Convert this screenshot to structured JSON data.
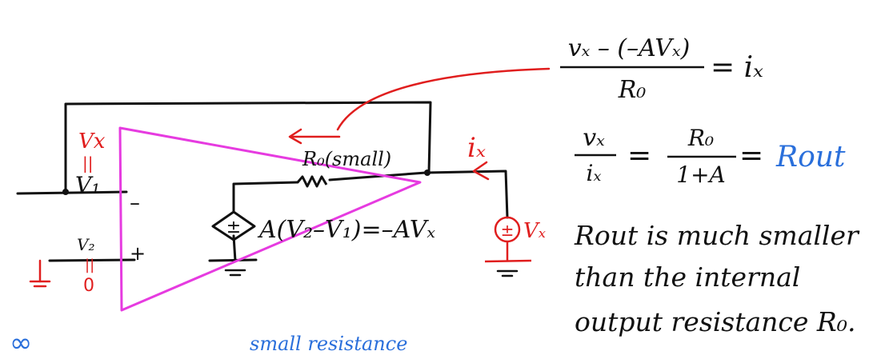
{
  "colors": {
    "ink": "#111111",
    "red": "#e01e1e",
    "magenta": "#e63be0",
    "blue": "#2a6fdb"
  },
  "left": {
    "vx": "Vx",
    "equals": "||",
    "v1": "V₁",
    "v2": "V₂",
    "zero": "0",
    "minus": "–",
    "plus": "+"
  },
  "circuit": {
    "ro_label": "R₀(small)",
    "ix": "iₓ",
    "dep_source": "A(V₂–V₁)=–AVₓ",
    "test_source": "Vₓ",
    "pm": "±"
  },
  "equations": {
    "eq1_num": "vₓ – (–AVₓ)",
    "eq1_den": "R₀",
    "eq1_rhs": "= iₓ",
    "eq2_num": "vₓ",
    "eq2_den": "iₓ",
    "eq2_eq": "=",
    "eq2_num2": "R₀",
    "eq2_den2": "1+A",
    "eq2_eq2": "=",
    "eq2_rout": "Rout"
  },
  "note": {
    "line1": "Rout is much smaller",
    "line2": "than the internal",
    "line3": "output resistance R₀."
  },
  "bottom": {
    "infinity": "∞",
    "small_resistance": "small resistance"
  }
}
